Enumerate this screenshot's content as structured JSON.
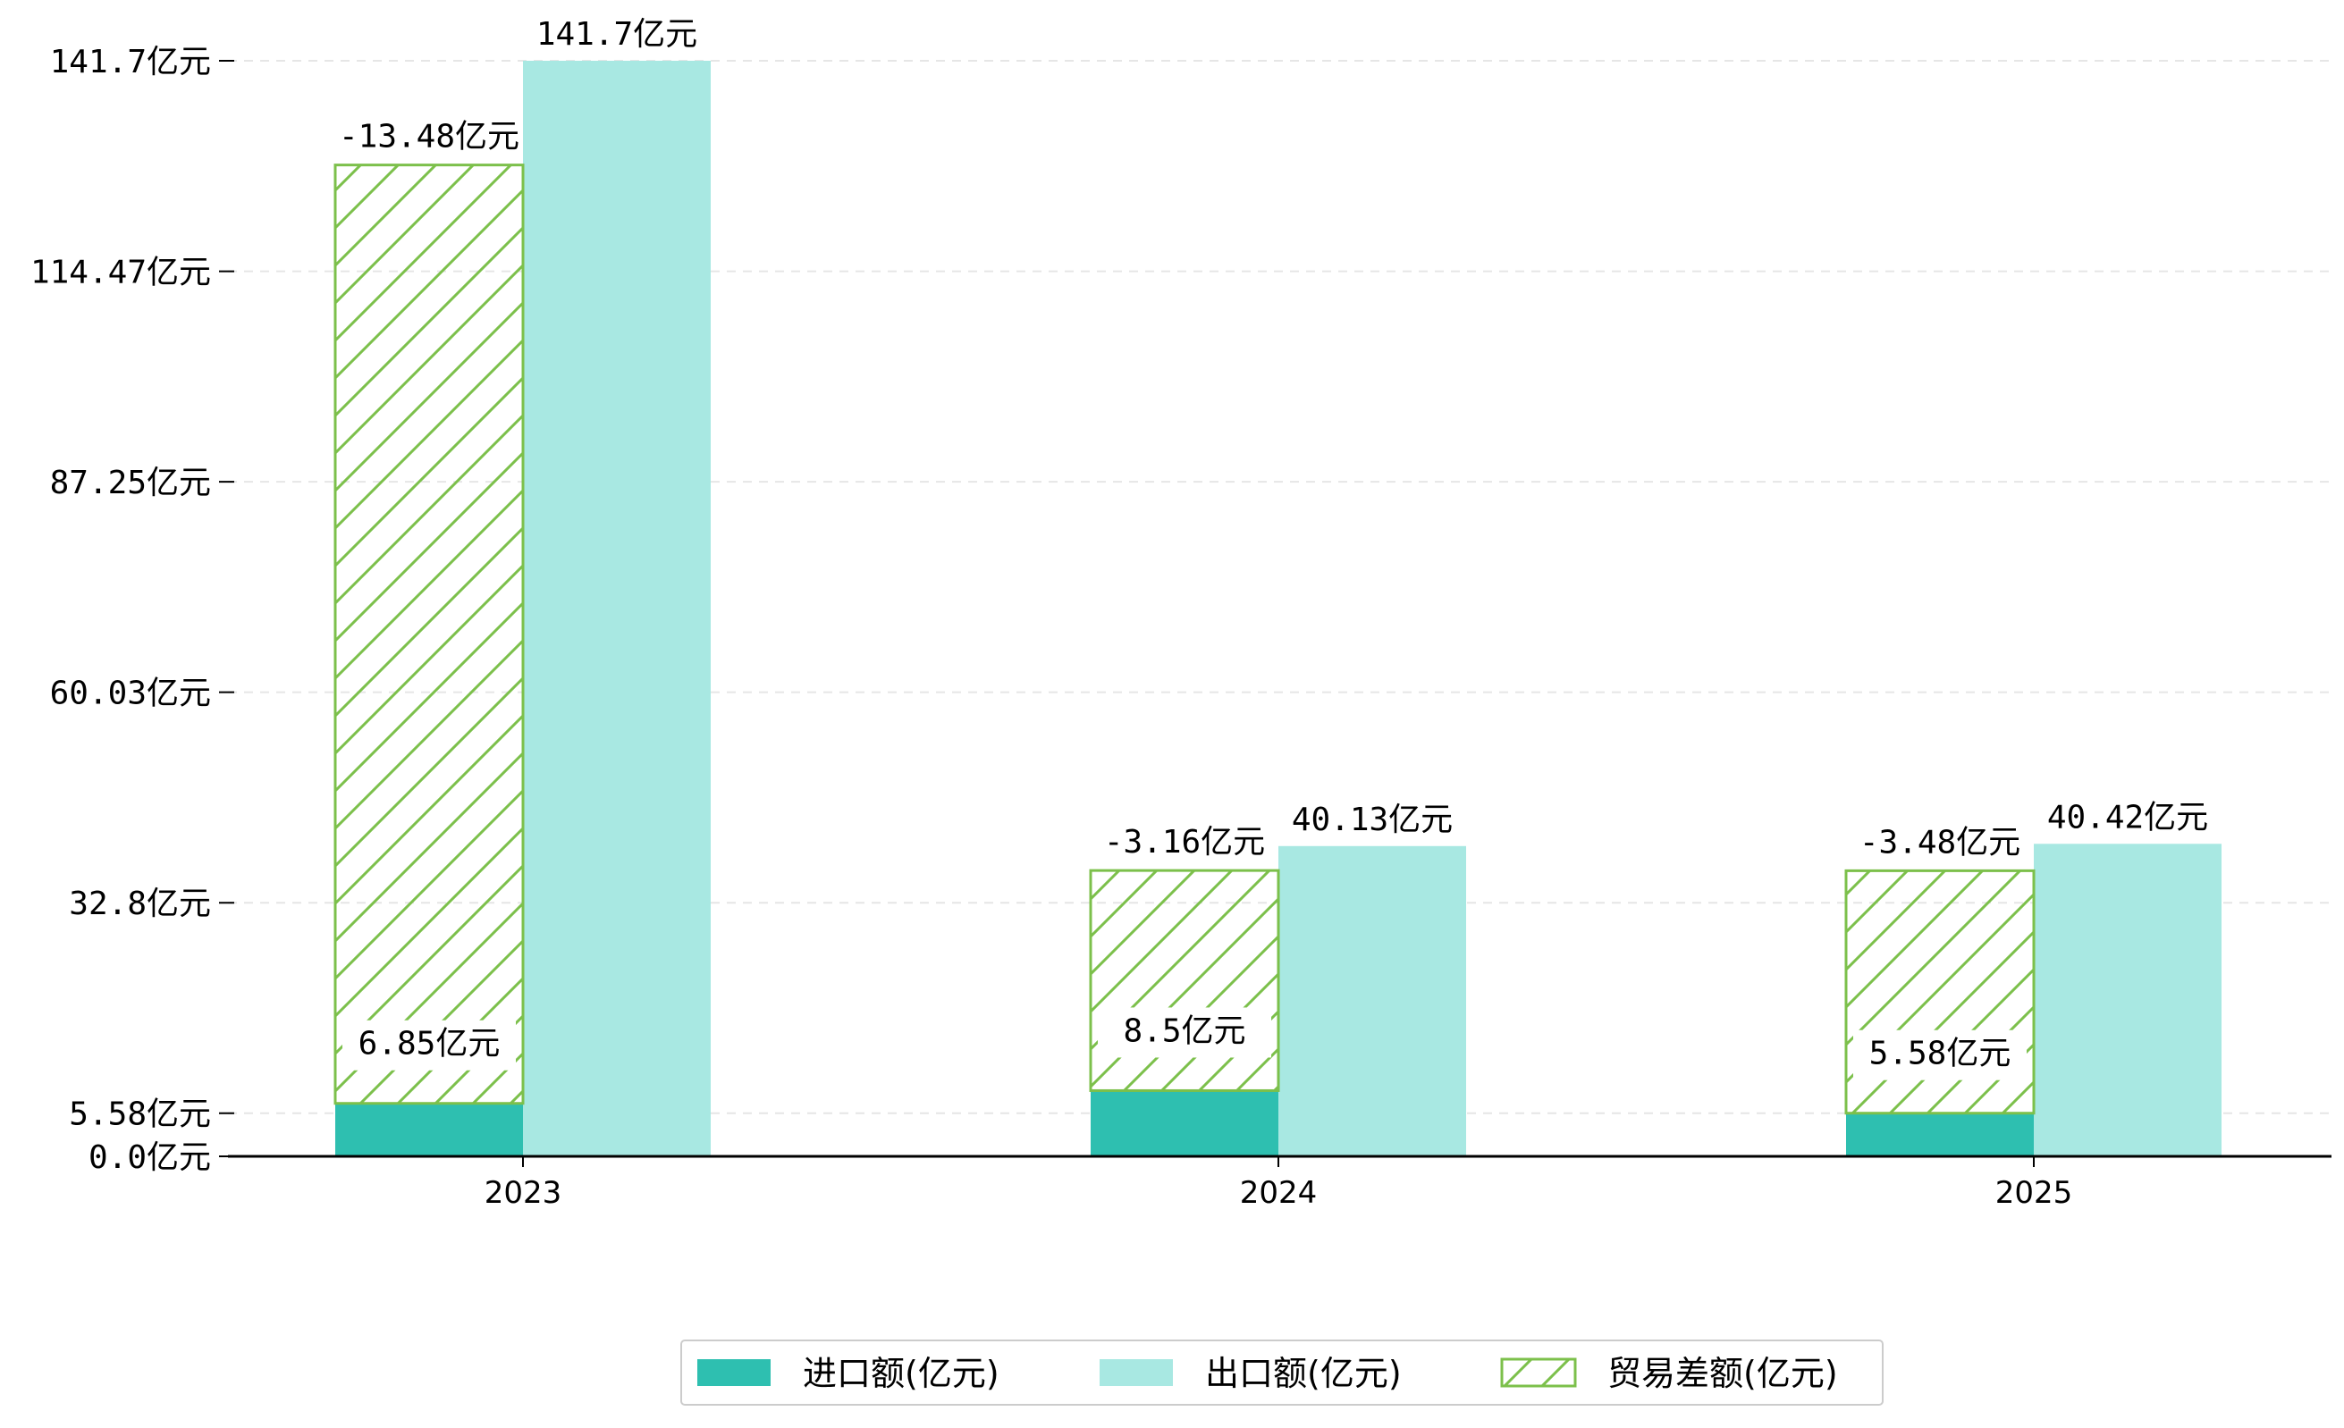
{
  "chart_data": {
    "type": "bar",
    "categories": [
      "2023",
      "2024",
      "2025"
    ],
    "unit_suffix": "亿元",
    "ylim": [
      0,
      141.7
    ],
    "yticks": [
      {
        "value": 0.0,
        "label": "0.0亿元"
      },
      {
        "value": 5.58,
        "label": "5.58亿元"
      },
      {
        "value": 32.8,
        "label": "32.8亿元"
      },
      {
        "value": 60.03,
        "label": "60.03亿元"
      },
      {
        "value": 87.25,
        "label": "87.25亿元"
      },
      {
        "value": 114.47,
        "label": "114.47亿元"
      },
      {
        "value": 141.7,
        "label": "141.7亿元"
      }
    ],
    "grid": "horizontal dashed",
    "legend_position": "bottom-center",
    "series": [
      {
        "name": "进口额(亿元)",
        "color": "#2ebfb0",
        "values": [
          6.85,
          8.5,
          5.58
        ],
        "labels": [
          "6.85亿元",
          "8.5亿元",
          "5.58亿元"
        ]
      },
      {
        "name": "出口额(亿元)",
        "color": "#a8e8e2",
        "values": [
          141.7,
          40.13,
          40.42
        ],
        "labels": [
          "141.7亿元",
          "40.13亿元",
          "40.42亿元"
        ]
      },
      {
        "name": "贸易差额(亿元)",
        "color": "#7cc04b",
        "pattern": "hatch",
        "values": [
          -13.48,
          -3.16,
          -3.48
        ],
        "labels": [
          "-13.48亿元",
          "-3.16亿元",
          "-3.48亿元"
        ]
      }
    ]
  }
}
